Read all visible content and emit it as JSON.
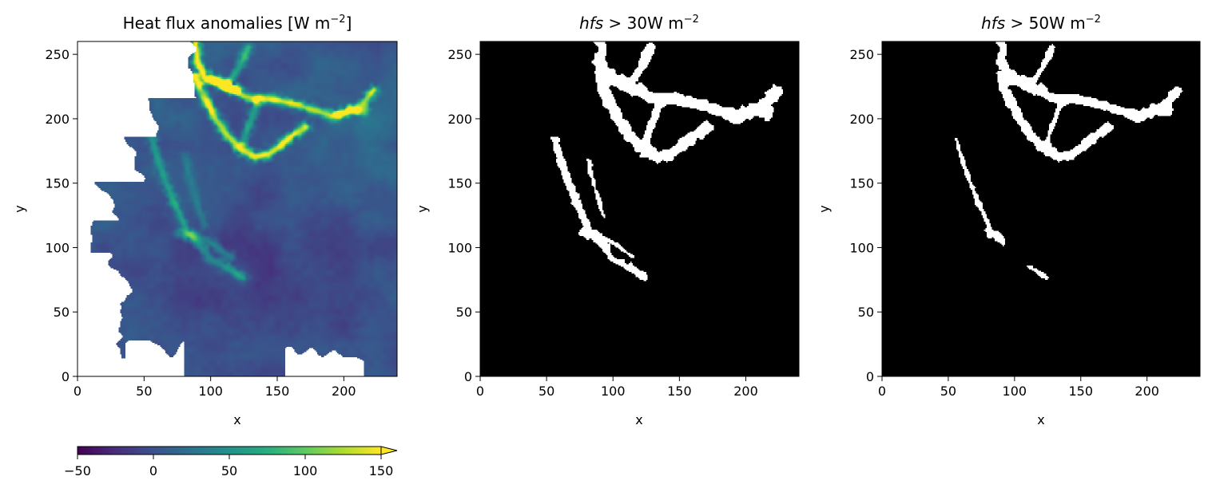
{
  "chart_data": [
    {
      "type": "heatmap",
      "title": "Heat flux anomalies [W m",
      "title_sup": "−2",
      "title_close": "]",
      "xlabel": "x",
      "ylabel": "y",
      "xlim": [
        0,
        240
      ],
      "ylim": [
        0,
        260
      ],
      "xticks": [
        0,
        50,
        100,
        150,
        200
      ],
      "yticks": [
        0,
        50,
        100,
        150,
        200,
        250
      ],
      "colormap": "viridis",
      "colorbar": {
        "orientation": "horizontal",
        "position": "bottom",
        "range": [
          -50,
          150
        ],
        "ticks": [
          -50,
          0,
          50,
          100,
          150
        ],
        "extend": "max"
      },
      "background_value": 5,
      "fronts": [
        {
          "points": [
            [
              88,
              260
            ],
            [
              90,
              243
            ],
            [
              95,
              232
            ],
            [
              103,
              228
            ],
            [
              112,
              224
            ],
            [
              118,
              222
            ]
          ],
          "value": 150
        },
        {
          "points": [
            [
              100,
              232
            ],
            [
              110,
              226
            ],
            [
              116,
              222
            ],
            [
              125,
              217
            ],
            [
              135,
              215
            ],
            [
              150,
              214
            ],
            [
              165,
              210
            ],
            [
              180,
              205
            ],
            [
              190,
              202
            ],
            [
              200,
              204
            ],
            [
              212,
              208
            ],
            [
              222,
              222
            ]
          ],
          "value": 125
        },
        {
          "points": [
            [
              88,
              232
            ],
            [
              95,
              215
            ],
            [
              103,
              200
            ],
            [
              112,
              187
            ],
            [
              122,
              176
            ],
            [
              133,
              170
            ],
            [
              143,
              172
            ],
            [
              150,
              177
            ],
            [
              160,
              186
            ],
            [
              170,
              193
            ]
          ],
          "value": 140
        },
        {
          "points": [
            [
              135,
              215
            ],
            [
              130,
              200
            ],
            [
              125,
              185
            ],
            [
              120,
              176
            ]
          ],
          "value": 60
        },
        {
          "points": [
            [
              128,
              255
            ],
            [
              120,
              238
            ],
            [
              112,
              226
            ]
          ],
          "value": 80
        },
        {
          "points": [
            [
              195,
              202
            ],
            [
              205,
              207
            ],
            [
              215,
              204
            ]
          ],
          "value": 70
        },
        {
          "points": [
            [
              55,
              185
            ],
            [
              62,
              160
            ],
            [
              72,
              135
            ],
            [
              82,
              112
            ],
            [
              92,
              100
            ],
            [
              100,
              90
            ],
            [
              108,
              86
            ],
            [
              116,
              81
            ],
            [
              124,
              76
            ]
          ],
          "value": 60
        },
        {
          "points": [
            [
              75,
              110
            ],
            [
              90,
              108
            ],
            [
              100,
              103
            ],
            [
              108,
              97
            ],
            [
              115,
              92
            ]
          ],
          "value": 45
        },
        {
          "points": [
            [
              80,
              170
            ],
            [
              85,
              150
            ],
            [
              90,
              130
            ],
            [
              95,
              117
            ]
          ],
          "value": 30
        }
      ],
      "warm_regions": [
        {
          "center": [
            210,
            180
          ],
          "radius": 40,
          "value": 18
        }
      ],
      "cool_regions": [
        {
          "center": [
            170,
            100
          ],
          "radius": 60,
          "value": -12
        },
        {
          "center": [
            115,
            45
          ],
          "radius": 55,
          "value": -8
        }
      ],
      "nan_mask": "white regions on the left edge and bottom where data are missing"
    },
    {
      "type": "heatmap",
      "title_math": "hfs",
      "title_rest": " > 30W m",
      "title_sup": "−2",
      "xlabel": "x",
      "ylabel": "y",
      "xlim": [
        0,
        240
      ],
      "ylim": [
        0,
        260
      ],
      "xticks": [
        0,
        50,
        100,
        150,
        200
      ],
      "yticks": [
        0,
        50,
        100,
        150,
        200,
        250
      ],
      "colormap": "binary (black = below threshold, white = above threshold)",
      "threshold": 30
    },
    {
      "type": "heatmap",
      "title_math": "hfs",
      "title_rest": " > 50W m",
      "title_sup": "−2",
      "xlabel": "x",
      "ylabel": "y",
      "xlim": [
        0,
        240
      ],
      "ylim": [
        0,
        260
      ],
      "xticks": [
        0,
        50,
        100,
        150,
        200
      ],
      "yticks": [
        0,
        50,
        100,
        150,
        200,
        250
      ],
      "colormap": "binary (black = below threshold, white = above threshold)",
      "threshold": 50
    }
  ]
}
